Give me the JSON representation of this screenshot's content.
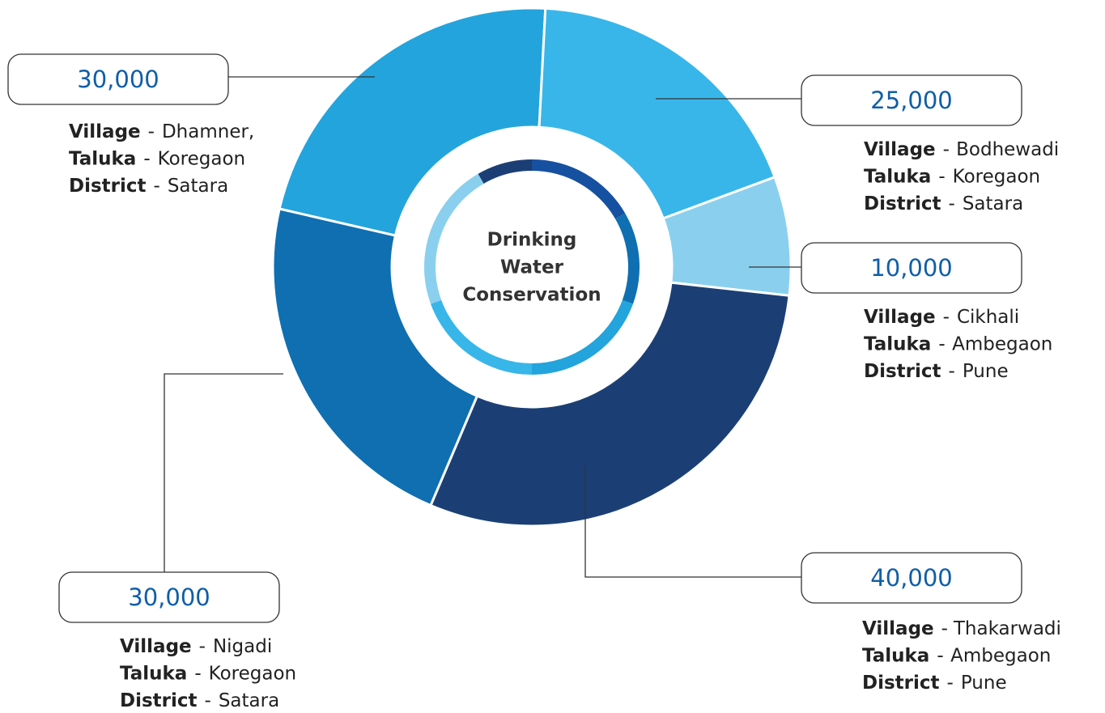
{
  "chart_data": {
    "type": "donut",
    "center_text": [
      "Drinking",
      "Water",
      "Conservation"
    ],
    "values": [
      30000,
      25000,
      10000,
      40000,
      30000
    ],
    "value_labels": [
      "30,000",
      "25,000",
      "10,000",
      "40,000",
      "30,000"
    ],
    "colors": [
      "#23a4dc",
      "#38b6ea",
      "#8ad0ee",
      "#1b3f75",
      "#0f6fb1"
    ],
    "field_labels": {
      "village": "Village",
      "taluka": "Taluka",
      "district": "District"
    },
    "separator": "-",
    "details": [
      {
        "village": "Dhamner,",
        "taluka": "Koregaon",
        "district": "Satara"
      },
      {
        "village": "Bodhewadi",
        "taluka": "Koregaon",
        "district": "Satara"
      },
      {
        "village": "Cikhali",
        "taluka": "Ambegaon",
        "district": "Pune"
      },
      {
        "village": "Thakarwadi",
        "taluka": "Ambegaon",
        "district": "Pune"
      },
      {
        "village": "Nigadi",
        "taluka": "Koregaon",
        "district": "Satara"
      }
    ]
  }
}
